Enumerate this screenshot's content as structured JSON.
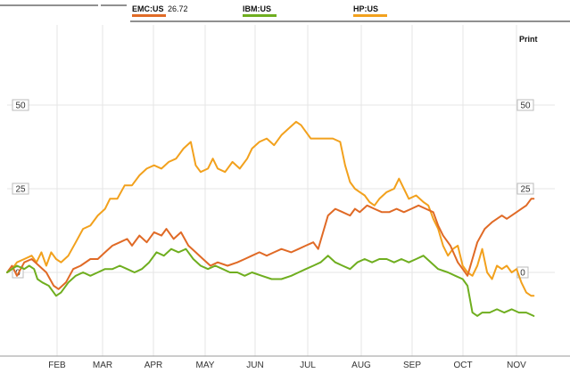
{
  "colors": {
    "emc": "#e06a26",
    "ibm": "#6fae1f",
    "hp": "#f2a11d",
    "grid": "#e6e6e6",
    "axis": "#999999"
  },
  "print_label": "Print",
  "legend": [
    {
      "name": "EMC:US",
      "value": "26.72",
      "color_key": "emc"
    },
    {
      "name": "IBM:US",
      "value": "",
      "color_key": "ibm"
    },
    {
      "name": "HP:US",
      "value": "",
      "color_key": "hp"
    }
  ],
  "chart_data": {
    "type": "line",
    "xlabel": "",
    "ylabel": "",
    "x_ticks": [
      "FEB",
      "MAR",
      "APR",
      "MAY",
      "JUN",
      "JUL",
      "AUG",
      "SEP",
      "OCT",
      "NOV"
    ],
    "y_ticks": [
      0,
      25,
      50
    ],
    "ylim": [
      -30,
      75
    ],
    "grid": true,
    "legend_position": "top",
    "x_range": [
      0,
      11.0
    ],
    "series": [
      {
        "name": "EMC:US",
        "color_key": "emc",
        "points": [
          [
            0.0,
            0
          ],
          [
            0.1,
            2
          ],
          [
            0.2,
            -1
          ],
          [
            0.35,
            3
          ],
          [
            0.5,
            4
          ],
          [
            0.65,
            2
          ],
          [
            0.8,
            0
          ],
          [
            0.95,
            -4
          ],
          [
            1.05,
            -5
          ],
          [
            1.2,
            -3
          ],
          [
            1.35,
            1
          ],
          [
            1.5,
            2
          ],
          [
            1.7,
            4
          ],
          [
            1.85,
            4
          ],
          [
            2.0,
            6
          ],
          [
            2.15,
            8
          ],
          [
            2.3,
            9
          ],
          [
            2.45,
            10
          ],
          [
            2.55,
            8
          ],
          [
            2.7,
            11
          ],
          [
            2.85,
            9
          ],
          [
            3.0,
            12
          ],
          [
            3.15,
            11
          ],
          [
            3.25,
            13
          ],
          [
            3.4,
            10
          ],
          [
            3.55,
            12
          ],
          [
            3.7,
            8
          ],
          [
            3.85,
            6
          ],
          [
            4.0,
            4
          ],
          [
            4.15,
            2
          ],
          [
            4.3,
            3
          ],
          [
            4.5,
            2
          ],
          [
            4.7,
            3
          ],
          [
            4.85,
            4
          ],
          [
            5.0,
            5
          ],
          [
            5.15,
            6
          ],
          [
            5.3,
            5
          ],
          [
            5.45,
            6
          ],
          [
            5.6,
            7
          ],
          [
            5.8,
            6
          ],
          [
            5.95,
            7
          ],
          [
            6.1,
            8
          ],
          [
            6.25,
            9
          ],
          [
            6.35,
            7
          ],
          [
            6.45,
            12
          ],
          [
            6.55,
            17
          ],
          [
            6.7,
            19
          ],
          [
            6.85,
            18
          ],
          [
            7.0,
            17
          ],
          [
            7.1,
            19
          ],
          [
            7.2,
            18
          ],
          [
            7.35,
            20
          ],
          [
            7.5,
            19
          ],
          [
            7.65,
            18
          ],
          [
            7.8,
            18
          ],
          [
            7.95,
            19
          ],
          [
            8.1,
            18
          ],
          [
            8.25,
            19
          ],
          [
            8.4,
            20
          ],
          [
            8.55,
            19
          ],
          [
            8.7,
            18
          ],
          [
            8.8,
            14
          ],
          [
            8.9,
            11
          ],
          [
            9.05,
            8
          ],
          [
            9.2,
            3
          ],
          [
            9.3,
            1
          ],
          [
            9.4,
            -1
          ],
          [
            9.5,
            4
          ],
          [
            9.6,
            9
          ],
          [
            9.75,
            13
          ],
          [
            9.9,
            15
          ],
          [
            10.0,
            16
          ],
          [
            10.1,
            17
          ],
          [
            10.2,
            16
          ],
          [
            10.3,
            17
          ],
          [
            10.4,
            18
          ],
          [
            10.5,
            19
          ],
          [
            10.6,
            20
          ],
          [
            10.7,
            22
          ],
          [
            10.75,
            22
          ]
        ]
      },
      {
        "name": "IBM:US",
        "color_key": "ibm",
        "points": [
          [
            0.0,
            0
          ],
          [
            0.1,
            1
          ],
          [
            0.2,
            2
          ],
          [
            0.35,
            1
          ],
          [
            0.45,
            2
          ],
          [
            0.55,
            1
          ],
          [
            0.62,
            -2
          ],
          [
            0.72,
            -3
          ],
          [
            0.85,
            -4
          ],
          [
            1.0,
            -7
          ],
          [
            1.1,
            -6
          ],
          [
            1.25,
            -3
          ],
          [
            1.4,
            -1
          ],
          [
            1.55,
            0
          ],
          [
            1.7,
            -1
          ],
          [
            1.85,
            0
          ],
          [
            2.0,
            1
          ],
          [
            2.15,
            1
          ],
          [
            2.3,
            2
          ],
          [
            2.45,
            1
          ],
          [
            2.6,
            0
          ],
          [
            2.75,
            1
          ],
          [
            2.9,
            3
          ],
          [
            3.05,
            6
          ],
          [
            3.2,
            5
          ],
          [
            3.35,
            7
          ],
          [
            3.5,
            6
          ],
          [
            3.65,
            7
          ],
          [
            3.8,
            4
          ],
          [
            3.95,
            2
          ],
          [
            4.1,
            1
          ],
          [
            4.25,
            2
          ],
          [
            4.4,
            1
          ],
          [
            4.55,
            0
          ],
          [
            4.7,
            0
          ],
          [
            4.85,
            -1
          ],
          [
            5.0,
            0
          ],
          [
            5.2,
            -1
          ],
          [
            5.4,
            -2
          ],
          [
            5.6,
            -2
          ],
          [
            5.8,
            -1
          ],
          [
            5.95,
            0
          ],
          [
            6.1,
            1
          ],
          [
            6.25,
            2
          ],
          [
            6.4,
            3
          ],
          [
            6.55,
            5
          ],
          [
            6.7,
            3
          ],
          [
            6.85,
            2
          ],
          [
            7.0,
            1
          ],
          [
            7.15,
            3
          ],
          [
            7.3,
            4
          ],
          [
            7.45,
            3
          ],
          [
            7.6,
            4
          ],
          [
            7.75,
            4
          ],
          [
            7.9,
            3
          ],
          [
            8.05,
            4
          ],
          [
            8.2,
            3
          ],
          [
            8.35,
            4
          ],
          [
            8.5,
            5
          ],
          [
            8.65,
            3
          ],
          [
            8.8,
            1
          ],
          [
            9.0,
            0
          ],
          [
            9.15,
            -1
          ],
          [
            9.3,
            -2
          ],
          [
            9.4,
            -4
          ],
          [
            9.5,
            -12
          ],
          [
            9.6,
            -13
          ],
          [
            9.7,
            -12
          ],
          [
            9.85,
            -12
          ],
          [
            10.0,
            -11
          ],
          [
            10.15,
            -12
          ],
          [
            10.3,
            -11
          ],
          [
            10.45,
            -12
          ],
          [
            10.6,
            -12
          ],
          [
            10.75,
            -13
          ]
        ]
      },
      {
        "name": "HP:US",
        "color_key": "hp",
        "points": [
          [
            0.0,
            0
          ],
          [
            0.1,
            1
          ],
          [
            0.2,
            3
          ],
          [
            0.35,
            4
          ],
          [
            0.5,
            5
          ],
          [
            0.6,
            3
          ],
          [
            0.7,
            6
          ],
          [
            0.8,
            2
          ],
          [
            0.9,
            6
          ],
          [
            1.0,
            4
          ],
          [
            1.1,
            3
          ],
          [
            1.25,
            5
          ],
          [
            1.4,
            9
          ],
          [
            1.55,
            13
          ],
          [
            1.7,
            14
          ],
          [
            1.85,
            17
          ],
          [
            2.0,
            19
          ],
          [
            2.1,
            22
          ],
          [
            2.25,
            22
          ],
          [
            2.4,
            26
          ],
          [
            2.55,
            26
          ],
          [
            2.7,
            29
          ],
          [
            2.85,
            31
          ],
          [
            3.0,
            32
          ],
          [
            3.15,
            31
          ],
          [
            3.3,
            33
          ],
          [
            3.45,
            34
          ],
          [
            3.6,
            37
          ],
          [
            3.75,
            39
          ],
          [
            3.85,
            32
          ],
          [
            3.95,
            30
          ],
          [
            4.1,
            31
          ],
          [
            4.2,
            34
          ],
          [
            4.3,
            31
          ],
          [
            4.45,
            30
          ],
          [
            4.6,
            33
          ],
          [
            4.75,
            31
          ],
          [
            4.9,
            34
          ],
          [
            5.0,
            37
          ],
          [
            5.15,
            39
          ],
          [
            5.3,
            40
          ],
          [
            5.45,
            38
          ],
          [
            5.6,
            41
          ],
          [
            5.75,
            43
          ],
          [
            5.9,
            45
          ],
          [
            6.0,
            44
          ],
          [
            6.1,
            42
          ],
          [
            6.2,
            40
          ],
          [
            6.35,
            40
          ],
          [
            6.5,
            40
          ],
          [
            6.65,
            40
          ],
          [
            6.8,
            39
          ],
          [
            6.9,
            32
          ],
          [
            7.0,
            27
          ],
          [
            7.1,
            25
          ],
          [
            7.2,
            24
          ],
          [
            7.3,
            23
          ],
          [
            7.4,
            21
          ],
          [
            7.5,
            20
          ],
          [
            7.6,
            22
          ],
          [
            7.75,
            24
          ],
          [
            7.9,
            25
          ],
          [
            8.0,
            28
          ],
          [
            8.1,
            25
          ],
          [
            8.2,
            22
          ],
          [
            8.35,
            23
          ],
          [
            8.5,
            21
          ],
          [
            8.6,
            20
          ],
          [
            8.7,
            16
          ],
          [
            8.8,
            13
          ],
          [
            8.9,
            8
          ],
          [
            9.0,
            5
          ],
          [
            9.1,
            7
          ],
          [
            9.2,
            8
          ],
          [
            9.3,
            2
          ],
          [
            9.4,
            0
          ],
          [
            9.5,
            -1
          ],
          [
            9.6,
            2
          ],
          [
            9.7,
            7
          ],
          [
            9.8,
            0
          ],
          [
            9.9,
            -2
          ],
          [
            10.0,
            2
          ],
          [
            10.1,
            1
          ],
          [
            10.2,
            2
          ],
          [
            10.3,
            0
          ],
          [
            10.4,
            1
          ],
          [
            10.5,
            -3
          ],
          [
            10.6,
            -6
          ],
          [
            10.7,
            -7
          ],
          [
            10.75,
            -7
          ]
        ]
      }
    ]
  }
}
